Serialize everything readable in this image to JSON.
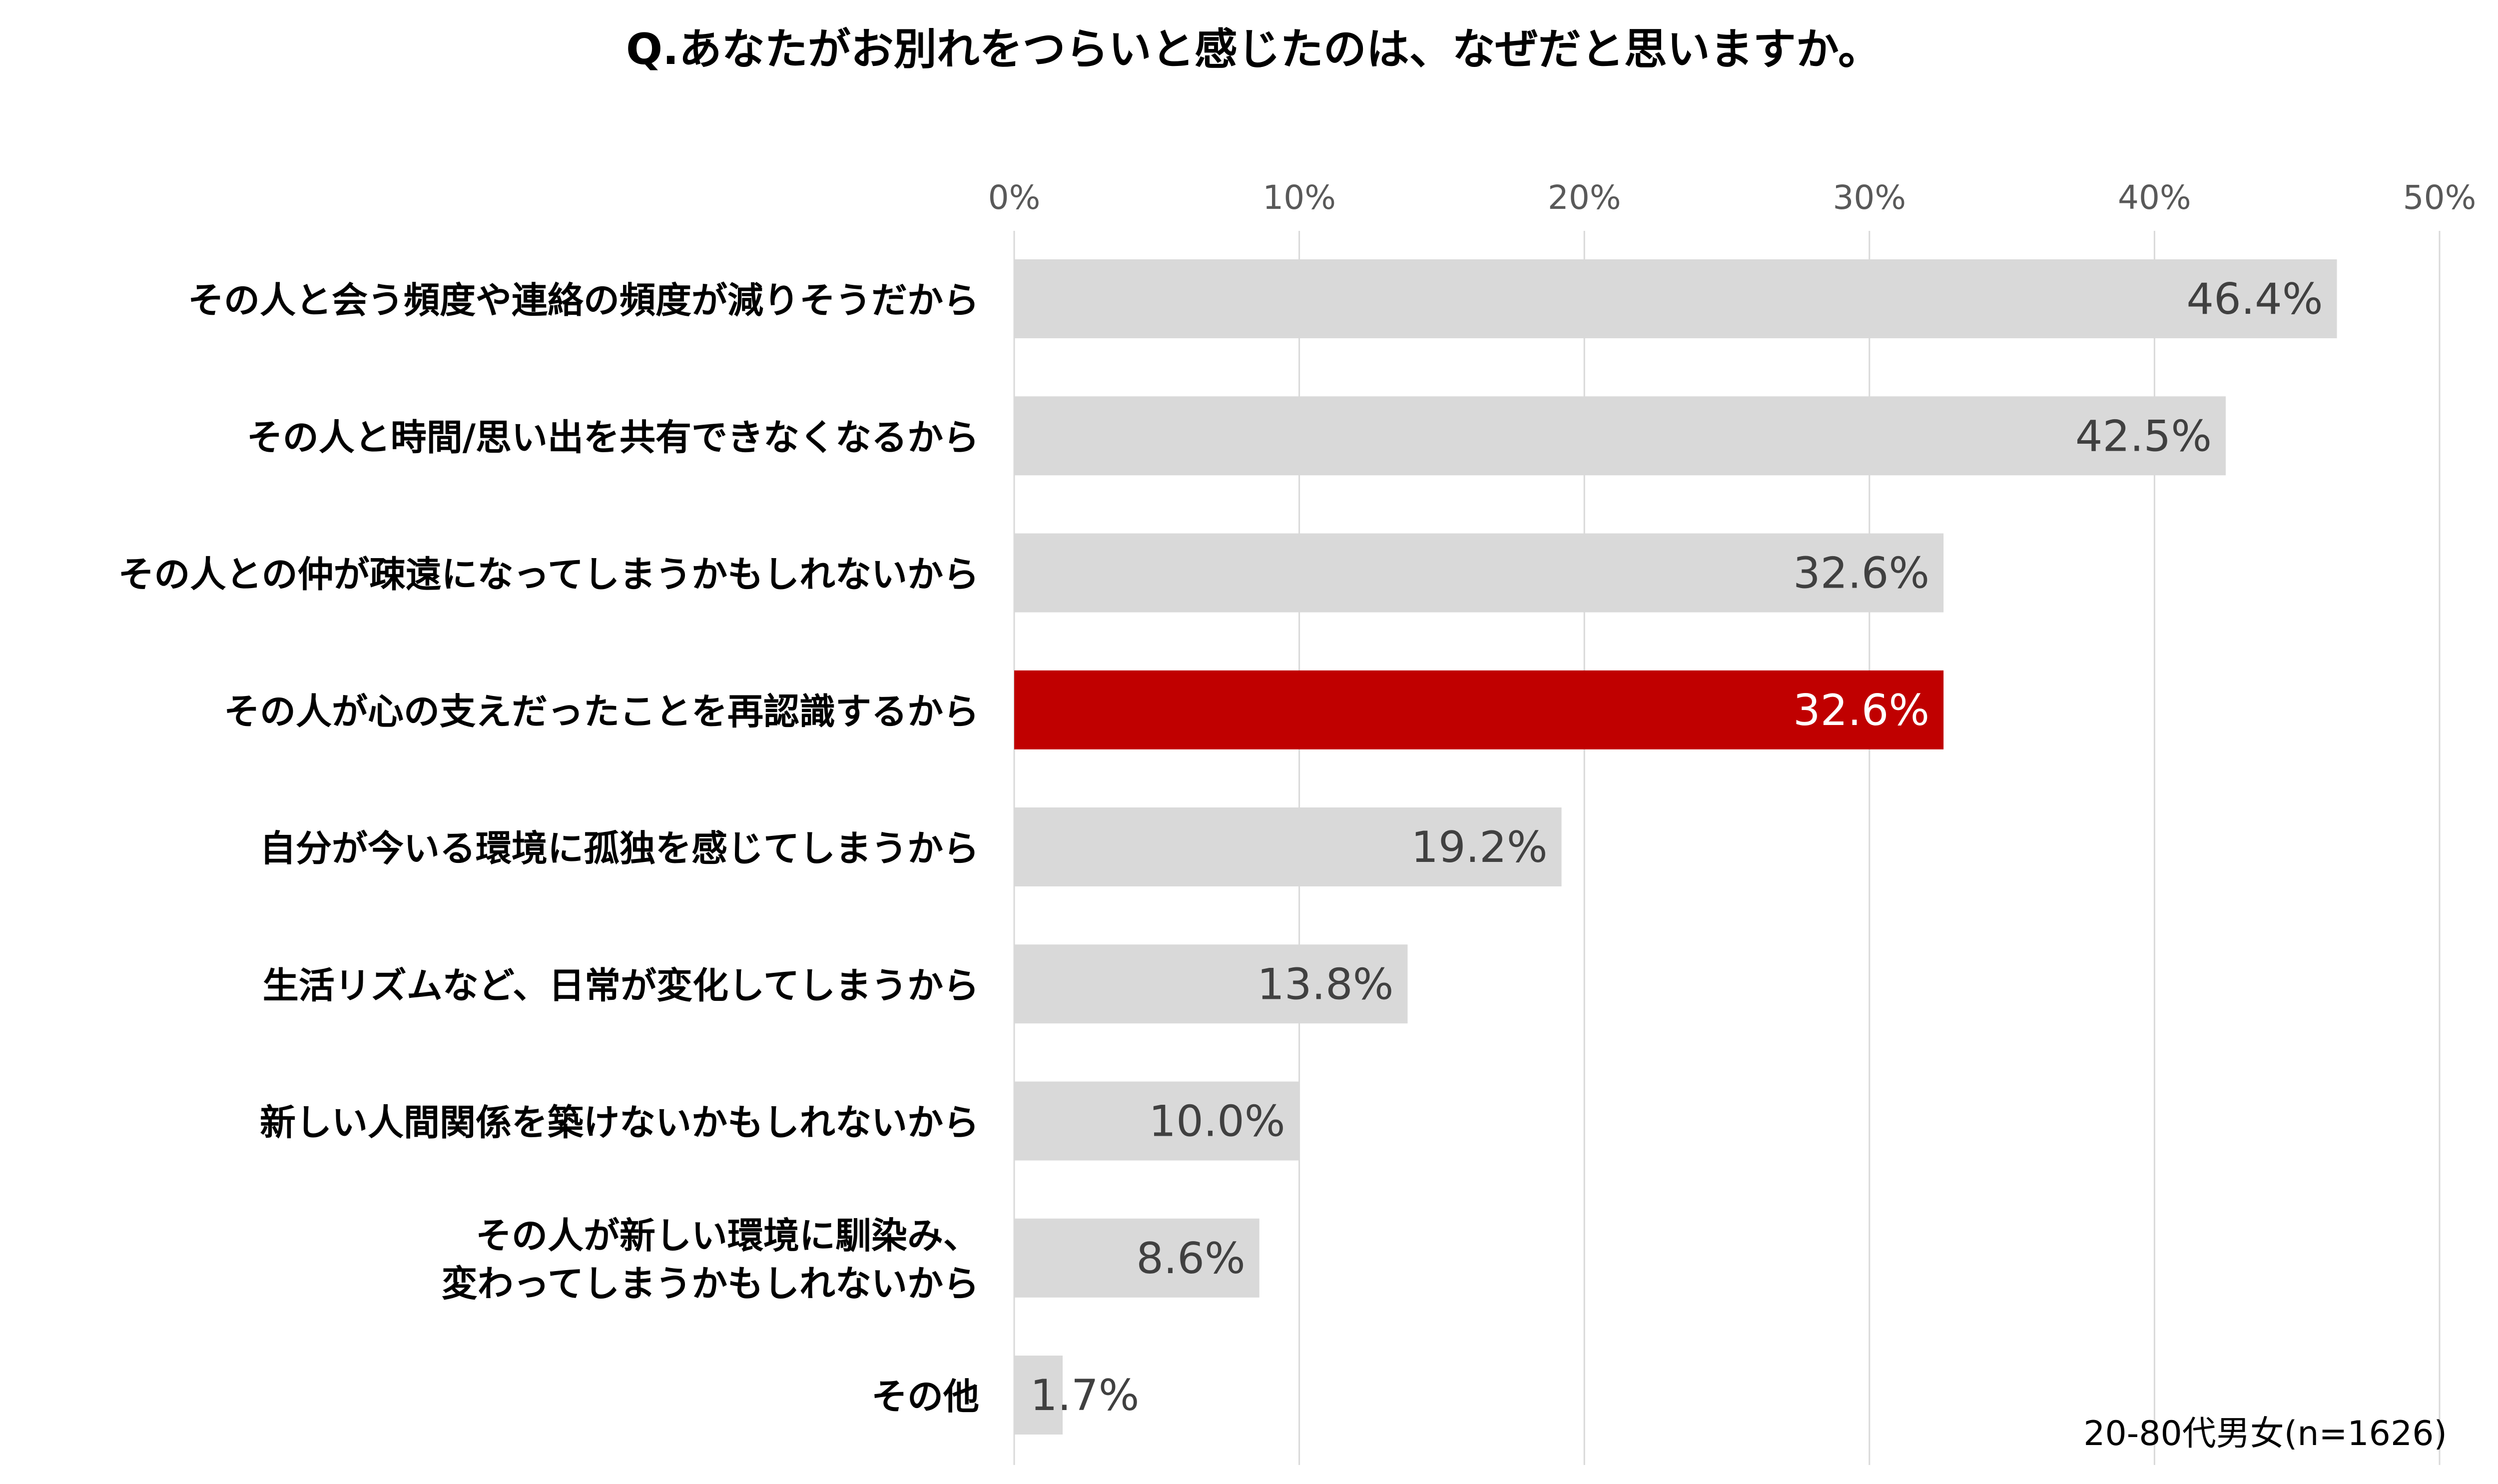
{
  "chart_data": {
    "type": "bar",
    "orientation": "horizontal",
    "title": "Q.あなたがお別れをつらいと感じたのは、なぜだと思いますか。",
    "note": "20-80代男女(n=1626)",
    "xlim": [
      0,
      50
    ],
    "x_ticks": [
      0,
      10,
      20,
      30,
      40,
      50
    ],
    "x_tick_labels": [
      "0%",
      "10%",
      "20%",
      "30%",
      "40%",
      "50%"
    ],
    "grid": "vertical",
    "categories": [
      [
        "その人と会う頻度や連絡の頻度が減りそうだから"
      ],
      [
        "その人と時間/思い出を共有できなくなるから"
      ],
      [
        "その人との仲が疎遠になってしまうかもしれないから"
      ],
      [
        "その人が心の支えだったことを再認識するから"
      ],
      [
        "自分が今いる環境に孤独を感じてしまうから"
      ],
      [
        "生活リズムなど、日常が変化してしまうから"
      ],
      [
        "新しい人間関係を築けないかもしれないから"
      ],
      [
        "その人が新しい環境に馴染み、",
        "変わってしまうかもしれないから"
      ],
      [
        "その他"
      ]
    ],
    "values": [
      46.4,
      42.5,
      32.6,
      32.6,
      19.2,
      13.8,
      10.0,
      8.6,
      1.7
    ],
    "value_labels": [
      "46.4%",
      "42.5%",
      "32.6%",
      "32.6%",
      "19.2%",
      "13.8%",
      "10.0%",
      "8.6%",
      "1.7%"
    ],
    "highlight_index": 3,
    "colors": {
      "bar": "#d9d9d9",
      "highlight": "#c00000",
      "label_on_bar": "#404040",
      "label_on_highlight": "#ffffff",
      "grid": "#d9d9d9",
      "tick": "#595959",
      "category_text": "#000000",
      "title_text": "#000000"
    }
  }
}
